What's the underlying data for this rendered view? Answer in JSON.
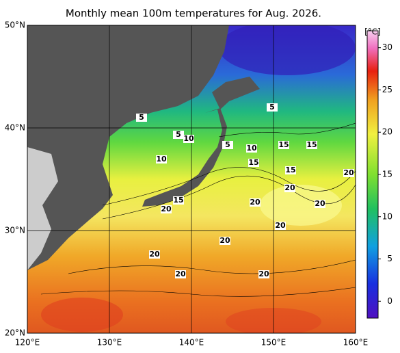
{
  "title": "Monthly mean 100m temperatures for Aug. 2026.",
  "map": {
    "xlim": [
      120,
      160
    ],
    "ylim": [
      20,
      50
    ],
    "xticks": [
      {
        "value": 120,
        "label": "120°E"
      },
      {
        "value": 130,
        "label": "130°E"
      },
      {
        "value": 140,
        "label": "140°E"
      },
      {
        "value": 150,
        "label": "150°E"
      },
      {
        "value": 160,
        "label": "160°E"
      }
    ],
    "yticks": [
      {
        "value": 20,
        "label": "20°N"
      },
      {
        "value": 30,
        "label": "30°N"
      },
      {
        "value": 40,
        "label": "40°N"
      },
      {
        "value": 50,
        "label": "50°N"
      }
    ],
    "contour_labels": [
      5,
      5,
      5,
      5,
      10,
      10,
      10,
      15,
      15,
      15,
      15,
      15,
      20,
      20,
      20,
      20,
      20,
      20,
      20,
      20,
      20,
      20
    ]
  },
  "colorbar": {
    "unit": "[°C]",
    "lim": [
      -2,
      32
    ],
    "ticks": [
      0,
      5,
      10,
      15,
      20,
      25,
      30
    ]
  }
}
